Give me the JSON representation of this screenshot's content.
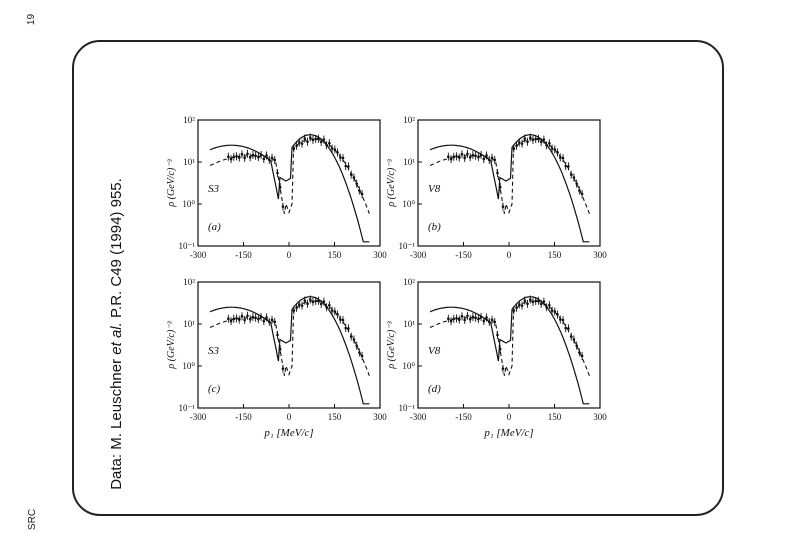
{
  "page": {
    "number": "19",
    "tag": "SRC"
  },
  "caption": {
    "before": "Data: M. Leuschner ",
    "italic": "et al.",
    "after": " P.R. C49 (1994) 955."
  },
  "figure": {
    "xlabel": "p₁ [MeV/c]",
    "ylabel": "ρ (GeV/c)⁻³",
    "xticks": [
      "-300",
      "-150",
      "0",
      "150",
      "300"
    ],
    "yticks": [
      "10⁻¹",
      "10⁰",
      "10¹",
      "10²"
    ],
    "panels": [
      {
        "id": "a",
        "label": "(a)",
        "model": "S3"
      },
      {
        "id": "b",
        "label": "(b)",
        "model": "V8"
      },
      {
        "id": "c",
        "label": "(c)",
        "model": "S3"
      },
      {
        "id": "d",
        "label": "(d)",
        "model": "V8"
      }
    ]
  },
  "chart_data": {
    "type": "scatter",
    "x_axis": {
      "label": "p₁ [MeV/c]",
      "range": [
        -300,
        300
      ],
      "ticks": [
        -300,
        -150,
        0,
        150,
        300
      ]
    },
    "y_axis": {
      "label": "ρ (GeV/c)⁻³",
      "scale": "log",
      "range": [
        0.1,
        100
      ]
    },
    "panels": [
      "(a)",
      "(b)",
      "(c)",
      "(d)"
    ]
  }
}
